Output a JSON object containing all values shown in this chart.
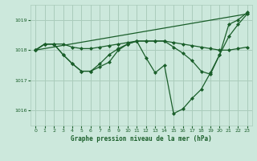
{
  "bg_color": "#cce8dc",
  "grid_color": "#aaccbb",
  "line_color": "#1a5e2a",
  "title": "Graphe pression niveau de la mer (hPa)",
  "xlim": [
    -0.5,
    23.5
  ],
  "ylim": [
    1015.5,
    1019.5
  ],
  "yticks": [
    1016,
    1017,
    1018,
    1019
  ],
  "xticks": [
    0,
    1,
    2,
    3,
    4,
    5,
    6,
    7,
    8,
    9,
    10,
    11,
    12,
    13,
    14,
    15,
    16,
    17,
    18,
    19,
    20,
    21,
    22,
    23
  ],
  "series": [
    {
      "x": [
        0,
        1,
        2,
        3,
        4,
        5,
        6,
        7,
        8,
        9,
        10,
        11,
        12,
        13,
        14,
        15,
        16,
        17,
        18,
        19,
        20,
        21,
        22,
        23
      ],
      "y": [
        1018.0,
        1018.2,
        1018.2,
        1017.85,
        1017.55,
        1017.3,
        1017.3,
        1017.45,
        1017.6,
        1018.0,
        1018.2,
        1018.3,
        1017.75,
        1017.25,
        1017.5,
        1015.9,
        1016.05,
        1016.4,
        1016.7,
        1017.25,
        1017.85,
        1018.85,
        1019.0,
        1019.25
      ]
    },
    {
      "x": [
        0,
        1,
        2,
        3,
        4,
        5,
        6,
        7,
        8,
        9,
        10,
        11,
        12,
        13,
        14,
        15,
        16,
        17,
        18,
        19,
        20,
        21,
        22,
        23
      ],
      "y": [
        1018.0,
        1018.2,
        1018.2,
        1018.2,
        1018.1,
        1018.05,
        1018.05,
        1018.1,
        1018.15,
        1018.2,
        1018.25,
        1018.3,
        1018.3,
        1018.3,
        1018.3,
        1018.25,
        1018.2,
        1018.15,
        1018.1,
        1018.05,
        1018.0,
        1018.0,
        1018.05,
        1018.1
      ]
    },
    {
      "x": [
        0,
        1,
        2,
        3,
        4,
        5,
        6,
        7,
        8,
        9,
        10,
        11,
        12,
        13,
        14,
        15,
        16,
        17,
        18,
        19,
        20,
        21,
        22,
        23
      ],
      "y": [
        1018.0,
        1018.2,
        1018.2,
        1017.85,
        1017.55,
        1017.3,
        1017.3,
        1017.55,
        1017.85,
        1018.05,
        1018.2,
        1018.3,
        1018.3,
        1018.3,
        1018.3,
        1018.1,
        1017.9,
        1017.65,
        1017.3,
        1017.2,
        1017.85,
        1018.45,
        1018.85,
        1019.2
      ]
    },
    {
      "x": [
        0,
        23
      ],
      "y": [
        1018.0,
        1019.2
      ]
    }
  ],
  "marker": "D",
  "markersize": 2.0,
  "linewidth": 0.9
}
